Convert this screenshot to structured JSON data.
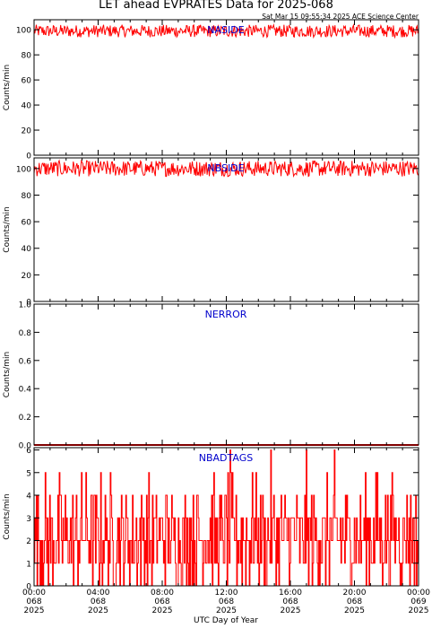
{
  "title": "LET ahead EVPRATES Data for 2025-068",
  "timestamp": "Sat Mar 15 09:55:34 2025 ACE Science Center",
  "xlabel": "UTC Day of Year",
  "colors": {
    "series": "#ff0000",
    "panel_label": "#0000cc",
    "axes": "#000000"
  },
  "x_ticks": [
    {
      "time": "00:00",
      "doy": "068",
      "year": "2025"
    },
    {
      "time": "04:00",
      "doy": "068",
      "year": "2025"
    },
    {
      "time": "08:00",
      "doy": "068",
      "year": "2025"
    },
    {
      "time": "12:00",
      "doy": "068",
      "year": "2025"
    },
    {
      "time": "16:00",
      "doy": "068",
      "year": "2025"
    },
    {
      "time": "20:00",
      "doy": "068",
      "year": "2025"
    },
    {
      "time": "00:00",
      "doy": "069",
      "year": "2025"
    }
  ],
  "chart_data": [
    {
      "type": "line",
      "series": [
        {
          "name": "NASIDE",
          "x_range_hours": [
            0,
            24
          ],
          "level_approx": 99,
          "noise_range": [
            94,
            104
          ]
        }
      ],
      "ylabel": "Counts/min",
      "ylim": [
        0,
        108
      ],
      "y_ticks": [
        "0",
        "20",
        "40",
        "60",
        "80",
        "100"
      ],
      "xlim_hours": [
        0,
        24
      ]
    },
    {
      "type": "line",
      "series": [
        {
          "name": "NBSIDE",
          "x_range_hours": [
            0,
            24
          ],
          "level_approx": 100,
          "noise_range": [
            94,
            106
          ]
        }
      ],
      "ylabel": "Counts/min",
      "ylim": [
        0,
        108
      ],
      "y_ticks": [
        "0",
        "20",
        "40",
        "60",
        "80",
        "100"
      ],
      "xlim_hours": [
        0,
        24
      ]
    },
    {
      "type": "line",
      "series": [
        {
          "name": "NERROR",
          "x_range_hours": [
            0,
            24
          ],
          "constant_value": 0
        }
      ],
      "ylabel": "Counts/min",
      "ylim": [
        0,
        1
      ],
      "y_ticks": [
        "0.0",
        "0.2",
        "0.4",
        "0.6",
        "0.8",
        "1.0"
      ],
      "xlim_hours": [
        0,
        24
      ]
    },
    {
      "type": "line",
      "series": [
        {
          "name": "NBADTAGS",
          "x_range_hours": [
            0,
            24
          ],
          "value_range": [
            0,
            6
          ],
          "typical_value": 2
        }
      ],
      "ylabel": "Counts/min",
      "ylim": [
        0,
        6.1
      ],
      "y_ticks": [
        "0",
        "1",
        "2",
        "3",
        "4",
        "5",
        "6"
      ],
      "xlim_hours": [
        0,
        24
      ]
    }
  ]
}
